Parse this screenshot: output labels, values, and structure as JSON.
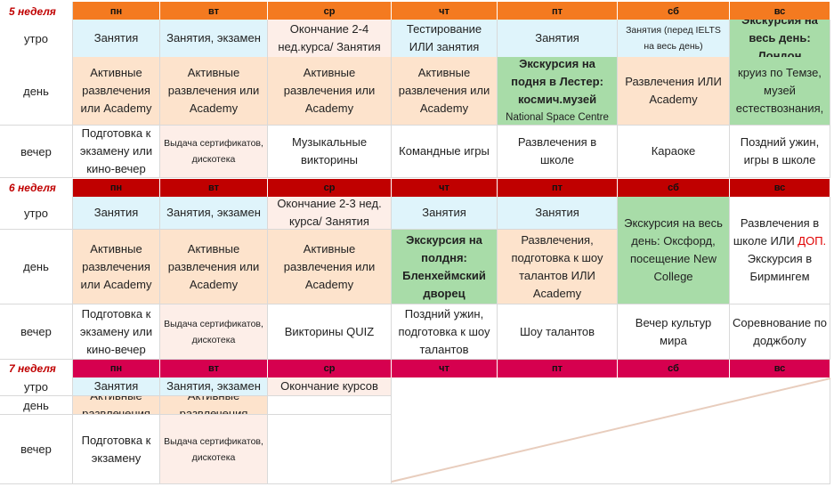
{
  "colors": {
    "header_orange": "#f47a20",
    "header_red": "#c00000",
    "header_crimson": "#d6004f",
    "lesson_blue": "#dff4fb",
    "activity_peach": "#fde3cc",
    "light_rose": "#fdeee8",
    "excursion_green": "#a8dca8",
    "plain_white": "#ffffff"
  },
  "days": [
    "пн",
    "вт",
    "ср",
    "чт",
    "пт",
    "сб",
    "вс"
  ],
  "weeks": [
    {
      "label": "5 неделя",
      "header_color": "#f47a20",
      "periods": [
        {
          "label": "утро",
          "cells": [
            {
              "text": "Занятия",
              "bg": "#dff4fb"
            },
            {
              "text": "Занятия, экзамен",
              "bg": "#dff4fb"
            },
            {
              "text": "Окончание 2-4 нед.курса/ Занятия",
              "bg": "#fdeee8"
            },
            {
              "text": "Тестирование ИЛИ занятия",
              "bg": "#dff4fb"
            },
            {
              "text": "Занятия",
              "bg": "#dff4fb"
            },
            {
              "text": "Занятия (перед IELTS на весь день)",
              "bg": "#dff4fb",
              "small": true
            },
            {
              "text": "Экскурсия на весь день: Лондон",
              "bg": "#a8dca8",
              "bold": true
            }
          ]
        },
        {
          "label": "день",
          "cells": [
            {
              "text": "Активные развлечения или Academy",
              "bg": "#fde3cc"
            },
            {
              "text": "Активные развлечения или Academy",
              "bg": "#fde3cc"
            },
            {
              "text": "Активные развлечения или Academy",
              "bg": "#fde3cc"
            },
            {
              "text": "Активные развлечения или Academy",
              "bg": "#fde3cc"
            },
            {
              "text": "Экскурсия на подня в Лестер: космич.музей",
              "sub": "National Space Centre",
              "bg": "#a8dca8",
              "bold": true
            },
            {
              "text": "Развлечения ИЛИ Academy",
              "bg": "#fde3cc"
            },
            {
              "text": "круиз по Темзе, музей естествознания,",
              "bg": "#a8dca8"
            }
          ]
        },
        {
          "label": "вечер",
          "cells": [
            {
              "text": "Подготовка к экзамену или кино-вечер",
              "bg": "#ffffff"
            },
            {
              "text": "Выдача сертификатов, дискотека",
              "bg": "#fdeee8",
              "small": true
            },
            {
              "text": "Музыкальные викторины",
              "bg": "#ffffff"
            },
            {
              "text": "Командные игры",
              "bg": "#ffffff"
            },
            {
              "text": "Развлечения в школе",
              "bg": "#ffffff"
            },
            {
              "text": "Караоке",
              "bg": "#ffffff"
            },
            {
              "text": "Поздний ужин, игры в школе",
              "bg": "#ffffff"
            }
          ]
        }
      ]
    },
    {
      "label": "6 неделя",
      "header_color": "#c00000",
      "periods": [
        {
          "label": "утро",
          "cells": [
            {
              "text": "Занятия",
              "bg": "#dff4fb"
            },
            {
              "text": "Занятия, экзамен",
              "bg": "#dff4fb"
            },
            {
              "text": "Окончание 2-3 нед. курса/ Занятия",
              "bg": "#fdeee8"
            },
            {
              "text": "Занятия",
              "bg": "#dff4fb"
            },
            {
              "text": "Занятия",
              "bg": "#dff4fb"
            },
            {
              "text": "Экскурсия на весь день: Оксфорд, посещение New College",
              "bg": "#a8dca8"
            },
            {
              "text": "Развлечения в школе ИЛИ ДОП. Экскурсия в Бирмингем",
              "highlight": "ДОП.",
              "bg": "#ffffff"
            }
          ]
        },
        {
          "label": "день",
          "cells": [
            {
              "text": "Активные развлечения или Academy",
              "bg": "#fde3cc"
            },
            {
              "text": "Активные развлечения или Academy",
              "bg": "#fde3cc"
            },
            {
              "text": "Активные развлечения или Academy",
              "bg": "#fde3cc"
            },
            {
              "text": "Экскурсия на полдня: Бленхеймский дворец",
              "bg": "#a8dca8",
              "bold": true
            },
            {
              "text": "Развлечения, подготовка к шоу талантов ИЛИ Academy",
              "bg": "#fde3cc"
            }
          ]
        },
        {
          "label": "вечер",
          "cells": [
            {
              "text": "Подготовка к экзамену или кино-вечер",
              "bg": "#ffffff"
            },
            {
              "text": "Выдача сертификатов, дискотека",
              "bg": "#fdeee8",
              "small": true
            },
            {
              "text": "Викторины QUIZ",
              "bg": "#ffffff"
            },
            {
              "text": "Поздний ужин, подготовка к шоу талантов",
              "bg": "#ffffff"
            },
            {
              "text": "Шоу талантов",
              "bg": "#ffffff"
            },
            {
              "text": "Вечер культур мира",
              "bg": "#ffffff"
            },
            {
              "text": "Соревнование по доджболу",
              "bg": "#ffffff"
            }
          ]
        }
      ]
    },
    {
      "label": "7 неделя",
      "header_color": "#d6004f",
      "periods": [
        {
          "label": "утро",
          "cells": [
            {
              "text": "Занятия",
              "bg": "#dff4fb"
            },
            {
              "text": "Занятия, экзамен",
              "bg": "#dff4fb"
            },
            {
              "text": "Окончание курсов",
              "bg": "#fdeee8"
            }
          ]
        },
        {
          "label": "день",
          "cells": [
            {
              "text": "Активные развлечения",
              "bg": "#fde3cc"
            },
            {
              "text": "Активные развлечения",
              "bg": "#fde3cc"
            }
          ]
        },
        {
          "label": "вечер",
          "cells": [
            {
              "text": "Подготовка к экзамену",
              "bg": "#ffffff"
            },
            {
              "text": "Выдача сертификатов, дискотека",
              "bg": "#fdeee8",
              "small": true
            }
          ]
        }
      ]
    }
  ]
}
